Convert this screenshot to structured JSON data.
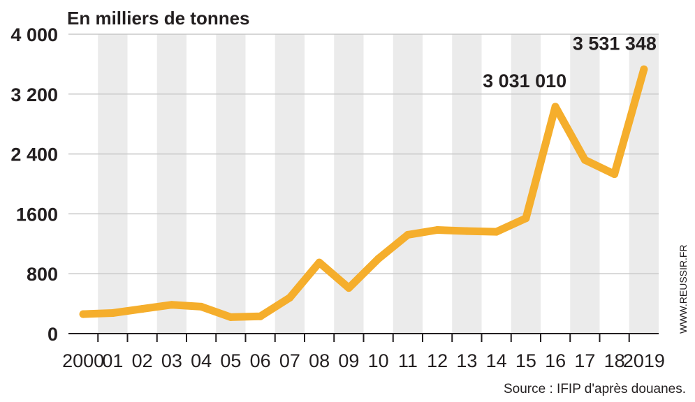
{
  "chart_data": {
    "type": "line",
    "title": "En milliers de tonnes",
    "xlabel": "",
    "ylabel": "",
    "ylim": [
      0,
      4000
    ],
    "yticks": [
      "0",
      "800",
      "1600",
      "2 400",
      "3 200",
      "4 000"
    ],
    "ytick_values": [
      0,
      800,
      1600,
      2400,
      3200,
      4000
    ],
    "categories": [
      "2000",
      "01",
      "02",
      "03",
      "04",
      "05",
      "06",
      "07",
      "08",
      "09",
      "10",
      "11",
      "12",
      "13",
      "14",
      "15",
      "16",
      "17",
      "18",
      "2019"
    ],
    "series": [
      {
        "values": [
          260,
          275,
          330,
          385,
          360,
          220,
          230,
          480,
          950,
          610,
          1000,
          1320,
          1385,
          1370,
          1360,
          1540,
          3031,
          2320,
          2130,
          3531
        ]
      }
    ],
    "annotations": [
      {
        "index": 16,
        "text": "3 031 010"
      },
      {
        "index": 19,
        "text": "3 531 348"
      }
    ],
    "grid": "alternating vertical bands + horizontal gridlines",
    "line_color": "#f5ae2c",
    "band_color": "#ebebeb",
    "gridline_color": "#c8c8c8"
  },
  "source": "Source : IFIP d'après douanes.",
  "credit": "WWW.REUSSIR.FR"
}
